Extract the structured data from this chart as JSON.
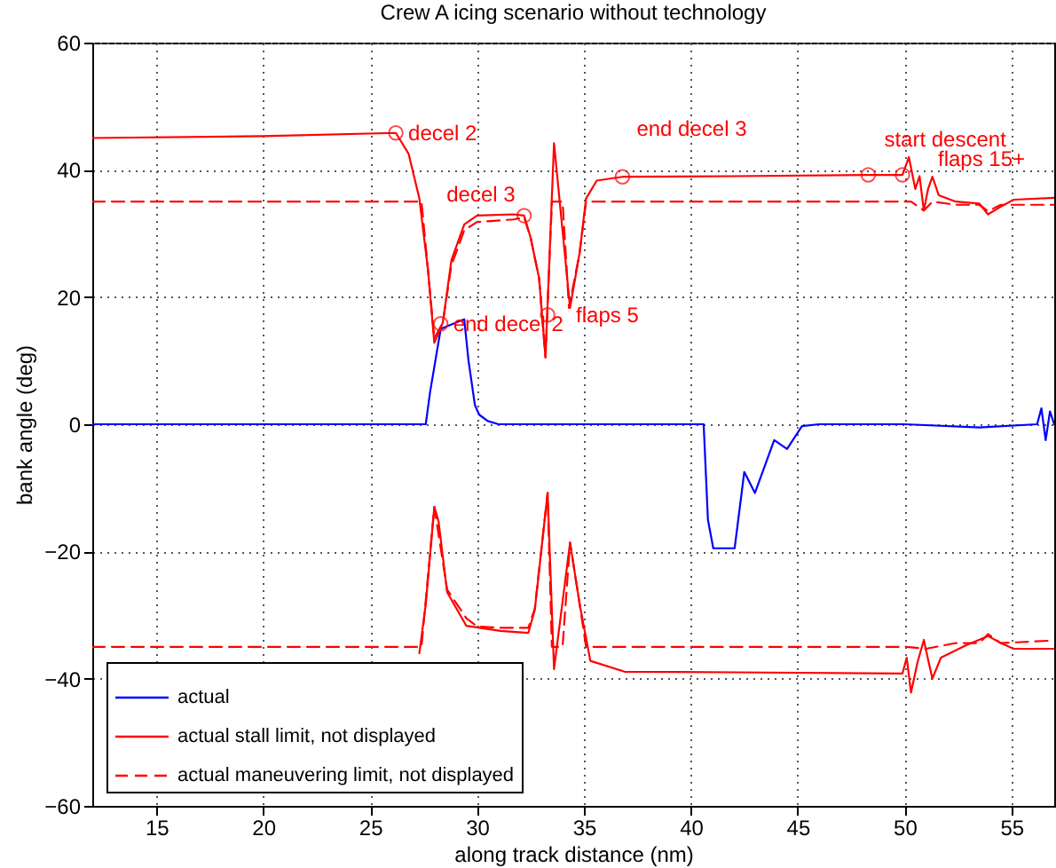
{
  "chart_data": {
    "type": "line",
    "title": "Crew A icing scenario without technology",
    "xlabel": "along track distance (nm)",
    "ylabel": "bank angle (deg)",
    "xlim": [
      12,
      57
    ],
    "xticks": [
      15,
      20,
      25,
      30,
      35,
      40,
      45,
      50,
      55
    ],
    "ylim": [
      -60,
      60
    ],
    "yticks": [
      -60,
      -40,
      -20,
      0,
      20,
      40,
      60
    ],
    "grid": true,
    "legend": "bottom left",
    "marker": "none",
    "series": [
      {
        "name": "actual",
        "color": "#0000ff",
        "line_style": "solid",
        "x": [
          12,
          20,
          27.6,
          27.8,
          28.3,
          29.4,
          29.6,
          29.9,
          30.1,
          30.5,
          31,
          35,
          40.6,
          40.8,
          41.05,
          42.05,
          42.5,
          43,
          43.9,
          44.5,
          45.2,
          46,
          50,
          53.5,
          56.2,
          56.4,
          56.6,
          56.8,
          57
        ],
        "values": [
          0,
          0,
          0,
          5,
          15,
          16.5,
          10,
          3,
          1.5,
          0.5,
          0,
          0,
          0,
          -15,
          -19.5,
          -19.5,
          -7.5,
          -10.8,
          -2.5,
          -3.9,
          -0.3,
          0,
          0,
          -0.5,
          0,
          2.5,
          -2.5,
          2,
          0
        ]
      },
      {
        "name": "actual stall limit, not displayed",
        "color": "#ff0000",
        "line_style": "solid",
        "x": [
          12,
          20,
          26.2,
          26.8,
          27.3,
          27.7,
          28,
          28.4,
          28.8,
          29.4,
          30,
          31.7,
          32.2,
          32.5,
          32.9,
          33.2,
          33.6,
          34.35,
          34.8,
          35.1,
          35.6,
          36.8,
          42,
          48.3,
          49.9,
          50.2,
          50.5,
          50.7,
          50.9,
          51.1,
          51.3,
          51.6,
          52.4,
          53.5,
          53.9,
          54.5,
          55.1,
          57
        ],
        "values": [
          45,
          45.3,
          45.8,
          42.5,
          35.5,
          24.4,
          12.8,
          16,
          25.8,
          31.4,
          32.8,
          33,
          32.8,
          29.4,
          23,
          10.5,
          44.2,
          18.3,
          27,
          35.5,
          38.3,
          38.9,
          39,
          39.2,
          39.2,
          42,
          37,
          39,
          33.6,
          37,
          38.9,
          36,
          35,
          34.7,
          33,
          34.2,
          35.3,
          35.6
        ]
      },
      {
        "color": "#ff0000",
        "line_style": "solid",
        "x": [
          27.3,
          27.6,
          28,
          28.2,
          28.6,
          29.5,
          31.1,
          32.4,
          32.7,
          33.3,
          33.6,
          34.35,
          34.8,
          35.3,
          36.9,
          42,
          49.9,
          50.1,
          50.3,
          50.6,
          50.9,
          51.1,
          51.3,
          51.7,
          52.9,
          53.9,
          54.5,
          55.1,
          57
        ],
        "values": [
          -36,
          -28.3,
          -13,
          -15.3,
          -26.4,
          -31.7,
          -32.5,
          -32.8,
          -29.2,
          -10.8,
          -38.5,
          -18.6,
          -28.3,
          -37.2,
          -38.9,
          -39,
          -39.2,
          -36.7,
          -42.2,
          -37.5,
          -33.9,
          -37,
          -40,
          -36.7,
          -34.7,
          -33.3,
          -34.4,
          -35.3,
          -35.3
        ]
      },
      {
        "name": "actual maneuvering limit, not displayed",
        "color": "#ff0000",
        "line_style": "dashed",
        "x": [
          12,
          27.4,
          27.7,
          28,
          28.4,
          28.8,
          29.4,
          30,
          31.7,
          32.2,
          32.5,
          32.9,
          33.2,
          33.5,
          34,
          34.3,
          34.8,
          35.1,
          50.3,
          50.9,
          51.3,
          52.4,
          53.5,
          53.9,
          54.5,
          57
        ],
        "values": [
          35,
          35,
          24.4,
          13.5,
          16,
          25,
          30.5,
          31.8,
          32.2,
          32.5,
          29.4,
          23,
          10.5,
          35,
          35,
          18.3,
          27,
          35,
          35,
          33.6,
          35,
          34.5,
          34.5,
          33.5,
          34.5,
          34.5
        ]
      },
      {
        "color": "#ff0000",
        "line_style": "dashed",
        "x": [
          12,
          27.4,
          28,
          28.6,
          29.5,
          30,
          31.1,
          32.4,
          32.7,
          33.3,
          33.5,
          34,
          34.35,
          34.8,
          35.1,
          50.1,
          51,
          52.4,
          53.5,
          53.9,
          54.5,
          57
        ],
        "values": [
          -35,
          -35,
          -13,
          -26,
          -30.5,
          -31.8,
          -32,
          -32,
          -29,
          -10.8,
          -35,
          -35,
          -18.6,
          -28.3,
          -35,
          -35,
          -35.3,
          -34.4,
          -34.4,
          -33,
          -34.4,
          -34
        ]
      }
    ],
    "annotations": [
      {
        "text": "decel 2",
        "x": 26.2,
        "y": 45.8
      },
      {
        "text": "end decel 2",
        "x": 28.3,
        "y": 15.8
      },
      {
        "text": "decel 3",
        "x": 32.2,
        "y": 32.8
      },
      {
        "text": "flaps 5",
        "x": 33.3,
        "y": 17.2
      },
      {
        "text": "end decel 3",
        "x": 36.8,
        "y": 38.9
      },
      {
        "text": "start descent",
        "x": 48.3,
        "y": 39.2
      },
      {
        "text": "flaps 15+",
        "x": 49.9,
        "y": 39.2
      }
    ]
  }
}
